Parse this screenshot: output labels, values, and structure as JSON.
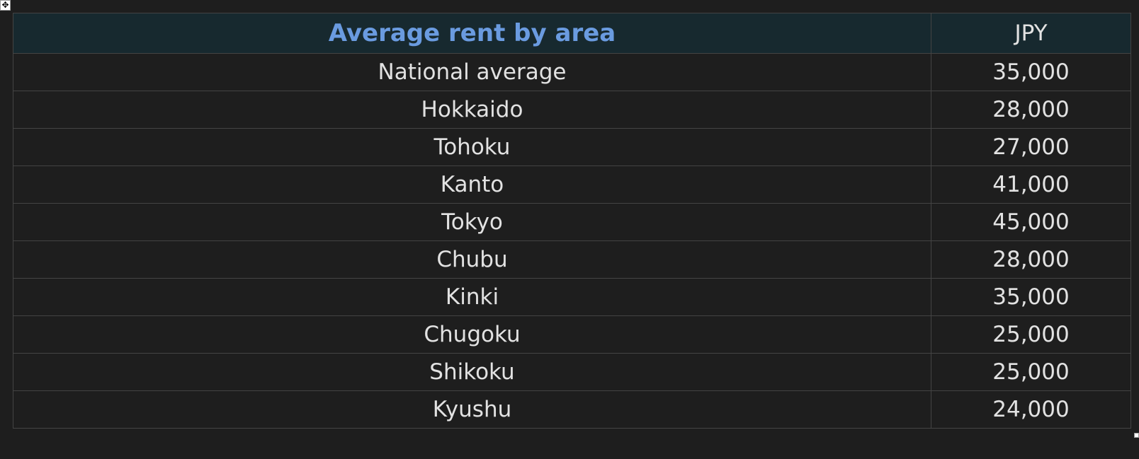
{
  "table": {
    "header": {
      "title": "Average rent by area",
      "unit": "JPY"
    },
    "rows": [
      {
        "area": "National average",
        "value": "35,000"
      },
      {
        "area": "Hokkaido",
        "value": "28,000"
      },
      {
        "area": "Tohoku",
        "value": "27,000"
      },
      {
        "area": "Kanto",
        "value": "41,000"
      },
      {
        "area": "Tokyo",
        "value": "45,000"
      },
      {
        "area": "Chubu",
        "value": "28,000"
      },
      {
        "area": "Kinki",
        "value": "35,000"
      },
      {
        "area": "Chugoku",
        "value": "25,000"
      },
      {
        "area": "Shikoku",
        "value": "25,000"
      },
      {
        "area": "Kyushu",
        "value": "24,000"
      }
    ]
  },
  "colors": {
    "background": "#1e1e1e",
    "header_background": "#17292f",
    "title_text": "#6a9be0",
    "cell_text": "#e2e2e2",
    "border": "#444444"
  },
  "icons": {
    "move_handle": "move-handle-icon",
    "resize_handle": "resize-handle-icon"
  }
}
